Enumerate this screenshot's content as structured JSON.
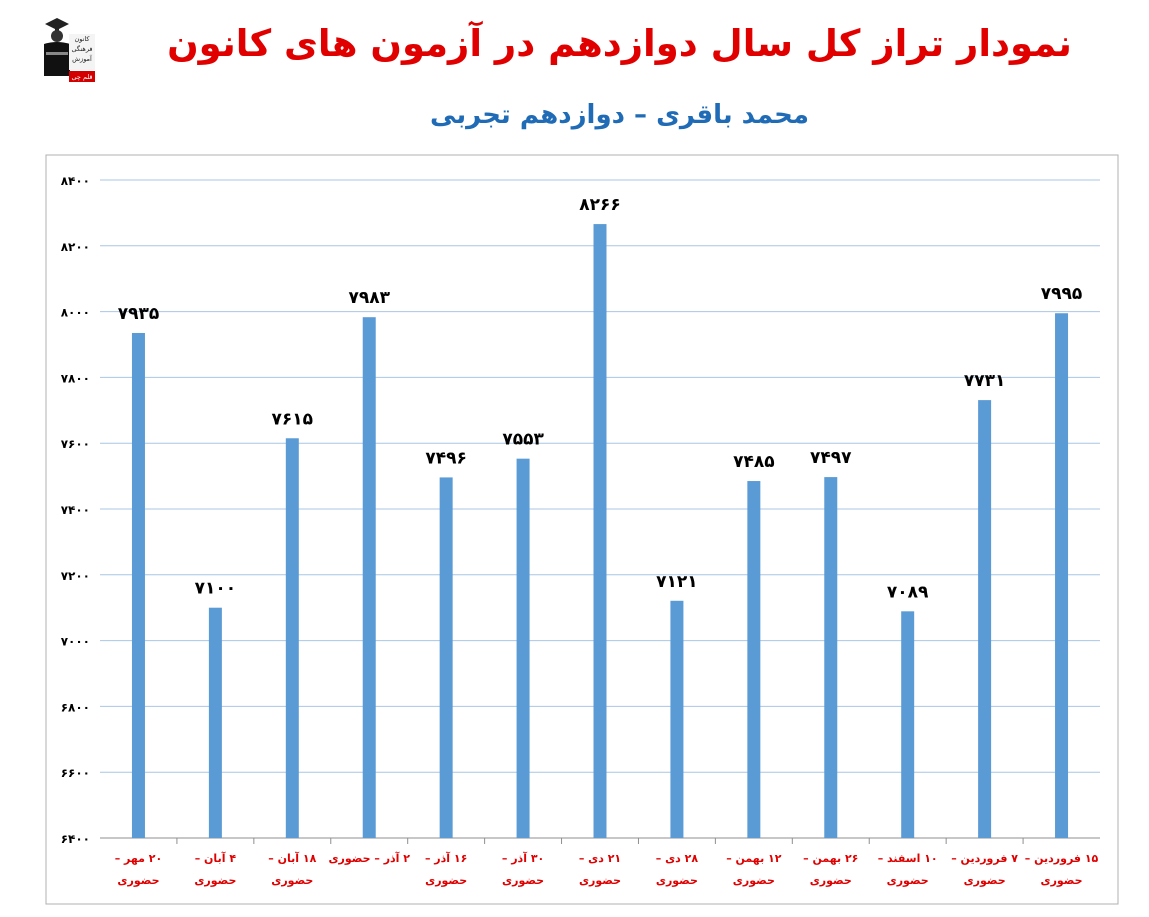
{
  "header": {
    "title": "نمودار تراز کل سال دوازدهم در آزمون های کانون",
    "subtitle": "محمد باقری – دوازدهم تجربی",
    "logo_text": [
      "کانون",
      "فرهنگی",
      "آموزش",
      "قلم چی"
    ]
  },
  "colors": {
    "bar": "#5b9bd5",
    "title": "#e00000",
    "subtitle": "#1f6bb6",
    "category_label": "#e00000",
    "grid": "#a9c6e4",
    "value_label": "#000000"
  },
  "chart_data": {
    "type": "bar",
    "title": "نمودار تراز کل سال دوازدهم در آزمون های کانون",
    "subtitle": "محمد باقری – دوازدهم تجربی",
    "categories": [
      [
        "۲۰ مهر –",
        "حضوری"
      ],
      [
        "۴ آبان –",
        "حضوری"
      ],
      [
        "۱۸ آبان –",
        "حضوری"
      ],
      [
        "۲ آذر – حضوری"
      ],
      [
        "۱۶ آذر –",
        "حضوری"
      ],
      [
        "۳۰ آذر –",
        "حضوری"
      ],
      [
        "۲۱ دی –",
        "حضوری"
      ],
      [
        "۲۸ دی –",
        "حضوری"
      ],
      [
        "۱۲ بهمن –",
        "حضوری"
      ],
      [
        "۲۶ بهمن –",
        "حضوری"
      ],
      [
        "۱۰ اسفند –",
        "حضوری"
      ],
      [
        "۷ فروردین –",
        "حضوری"
      ],
      [
        "۱۵ فروردین –",
        "حضوری"
      ]
    ],
    "values": [
      7935,
      7100,
      7615,
      7983,
      7496,
      7553,
      8266,
      7121,
      7485,
      7497,
      7089,
      7731,
      7995
    ],
    "value_labels": [
      "۷۹۳۵",
      "۷۱۰۰",
      "۷۶۱۵",
      "۷۹۸۳",
      "۷۴۹۶",
      "۷۵۵۳",
      "۸۲۶۶",
      "۷۱۲۱",
      "۷۴۸۵",
      "۷۴۹۷",
      "۷۰۸۹",
      "۷۷۳۱",
      "۷۹۹۵"
    ],
    "ylim": [
      6400,
      8400
    ],
    "yticks": [
      6400,
      6600,
      6800,
      7000,
      7200,
      7400,
      7600,
      7800,
      8000,
      8200,
      8400
    ],
    "ytick_labels": [
      "۶۴۰۰",
      "۶۶۰۰",
      "۶۸۰۰",
      "۷۰۰۰",
      "۷۲۰۰",
      "۷۴۰۰",
      "۷۶۰۰",
      "۷۸۰۰",
      "۸۰۰۰",
      "۸۲۰۰",
      "۸۴۰۰"
    ],
    "grid": true,
    "legend": "none"
  }
}
